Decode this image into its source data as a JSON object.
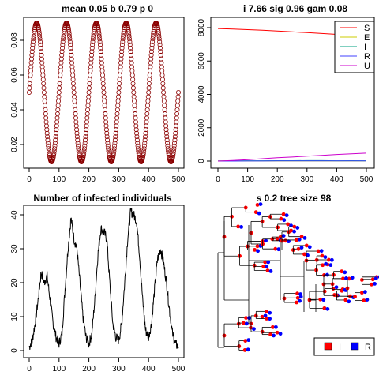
{
  "chart_data": [
    {
      "type": "scatter",
      "title": "mean 0.05 b 0.79 p 0",
      "xlabel": "",
      "ylabel": "",
      "xlim": [
        0,
        500
      ],
      "ylim": [
        0.01,
        0.09
      ],
      "xticks": [
        "0",
        "100",
        "200",
        "300",
        "400",
        "500"
      ],
      "yticks": [
        "0.02",
        "0.04",
        "0.06",
        "0.08"
      ],
      "grid": false,
      "marker": "open-circle",
      "color": "#8b0000",
      "series_formula": "y = 0.05 + 0.04*sin(2*pi*x/100); x = 0..500",
      "x": [
        0,
        5,
        10,
        15,
        20,
        25,
        30,
        35,
        40,
        45,
        50,
        55,
        60,
        65,
        70,
        75,
        80,
        85,
        90,
        95,
        100,
        105,
        110,
        115,
        120,
        125,
        130,
        135,
        140,
        145,
        150,
        155,
        160,
        165,
        170,
        175,
        180,
        185,
        190,
        195,
        200,
        205,
        210,
        215,
        220,
        225,
        230,
        235,
        240,
        245,
        250,
        255,
        260,
        265,
        270,
        275,
        280,
        285,
        290,
        295,
        300,
        305,
        310,
        315,
        320,
        325,
        330,
        335,
        340,
        345,
        350,
        355,
        360,
        365,
        370,
        375,
        380,
        385,
        390,
        395,
        400,
        405,
        410,
        415,
        420,
        425,
        430,
        435,
        440,
        445,
        450,
        455,
        460,
        465,
        470,
        475,
        480,
        485,
        490,
        495,
        500
      ],
      "y": [
        0.05,
        0.062,
        0.074,
        0.082,
        0.088,
        0.09,
        0.088,
        0.082,
        0.074,
        0.062,
        0.05,
        0.038,
        0.026,
        0.018,
        0.012,
        0.01,
        0.012,
        0.018,
        0.026,
        0.038,
        0.05,
        0.062,
        0.074,
        0.082,
        0.088,
        0.09,
        0.088,
        0.082,
        0.074,
        0.062,
        0.05,
        0.038,
        0.026,
        0.018,
        0.012,
        0.01,
        0.012,
        0.018,
        0.026,
        0.038,
        0.05,
        0.062,
        0.074,
        0.082,
        0.088,
        0.09,
        0.088,
        0.082,
        0.074,
        0.062,
        0.05,
        0.038,
        0.026,
        0.018,
        0.012,
        0.01,
        0.012,
        0.018,
        0.026,
        0.038,
        0.05,
        0.062,
        0.074,
        0.082,
        0.088,
        0.09,
        0.088,
        0.082,
        0.074,
        0.062,
        0.05,
        0.038,
        0.026,
        0.018,
        0.012,
        0.01,
        0.012,
        0.018,
        0.026,
        0.038,
        0.05,
        0.062,
        0.074,
        0.082,
        0.088,
        0.09,
        0.088,
        0.082,
        0.074,
        0.062,
        0.05,
        0.038,
        0.026,
        0.018,
        0.012,
        0.01,
        0.012,
        0.018,
        0.026,
        0.038,
        0.05
      ]
    },
    {
      "type": "line",
      "title": "i 7.66 sig 0.96 gam 0.08",
      "xlabel": "",
      "ylabel": "",
      "xlim": [
        0,
        500
      ],
      "ylim": [
        0,
        8000
      ],
      "xticks": [
        "0",
        "100",
        "200",
        "300",
        "400",
        "500"
      ],
      "yticks": [
        "0",
        "2000",
        "4000",
        "6000",
        "8000"
      ],
      "grid": false,
      "legend_position": "top-right",
      "x": [
        0,
        50,
        100,
        150,
        200,
        250,
        300,
        350,
        400,
        450,
        500
      ],
      "series": [
        {
          "name": "S",
          "color": "#ff0000",
          "values": [
            7950,
            7920,
            7880,
            7850,
            7800,
            7750,
            7700,
            7650,
            7600,
            7560,
            7520
          ]
        },
        {
          "name": "E",
          "color": "#cccc00",
          "values": [
            0,
            3,
            5,
            5,
            6,
            6,
            7,
            7,
            7,
            6,
            6
          ]
        },
        {
          "name": "I",
          "color": "#00a080",
          "values": [
            8,
            15,
            20,
            18,
            25,
            22,
            30,
            28,
            20,
            25,
            18
          ]
        },
        {
          "name": "R",
          "color": "#4040ff",
          "values": [
            0,
            2,
            4,
            6,
            8,
            9,
            10,
            11,
            12,
            13,
            14
          ]
        },
        {
          "name": "U",
          "color": "#cc00cc",
          "values": [
            0,
            40,
            80,
            140,
            200,
            240,
            300,
            340,
            400,
            440,
            480
          ]
        }
      ]
    },
    {
      "type": "line",
      "title": "Number of infected individuals",
      "xlabel": "",
      "ylabel": "",
      "xlim": [
        0,
        500
      ],
      "ylim": [
        0,
        42
      ],
      "xticks": [
        "0",
        "100",
        "200",
        "300",
        "400",
        "500"
      ],
      "yticks": [
        "0",
        "10",
        "20",
        "30",
        "40"
      ],
      "grid": false,
      "color": "#000000",
      "x": [
        0,
        10,
        20,
        30,
        40,
        50,
        60,
        70,
        80,
        90,
        100,
        110,
        120,
        130,
        140,
        150,
        160,
        170,
        180,
        190,
        200,
        210,
        220,
        230,
        240,
        250,
        260,
        270,
        280,
        290,
        300,
        310,
        320,
        330,
        340,
        350,
        360,
        370,
        380,
        390,
        400,
        410,
        420,
        430,
        440,
        450,
        460,
        470,
        480,
        490,
        500
      ],
      "y": [
        1,
        3,
        8,
        15,
        23,
        20,
        22,
        15,
        8,
        4,
        2,
        5,
        18,
        30,
        39,
        33,
        30,
        20,
        10,
        4,
        2,
        5,
        15,
        28,
        36,
        35,
        33,
        20,
        8,
        4,
        3,
        8,
        20,
        33,
        41,
        40,
        38,
        28,
        15,
        6,
        4,
        8,
        18,
        27,
        30,
        26,
        20,
        12,
        5,
        2,
        1
      ]
    },
    {
      "type": "tree",
      "title": "s 0.2 tree size 98",
      "legend_position": "bottom-right",
      "legend": [
        {
          "label": "I",
          "color": "#ff0000"
        },
        {
          "label": "R",
          "color": "#0000ff"
        }
      ]
    }
  ]
}
